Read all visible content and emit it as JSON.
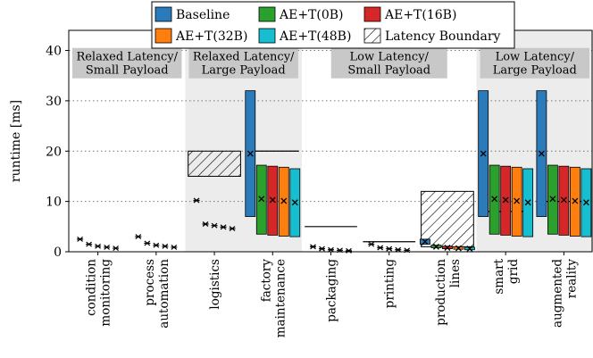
{
  "chart_data": {
    "type": "bar",
    "ylabel": "runtime [ms]",
    "ylim": [
      0,
      44
    ],
    "yticks": [
      0,
      10,
      20,
      30,
      40
    ],
    "grid": "horizontal-dotted",
    "legend_placement": "top",
    "legend": [
      {
        "key": "baseline",
        "label": "Baseline",
        "color": "#2b7bba",
        "pattern": "solid"
      },
      {
        "key": "ae0",
        "label": "AE+T(0B)",
        "color": "#2ca02c",
        "pattern": "solid"
      },
      {
        "key": "ae16",
        "label": "AE+T(16B)",
        "color": "#d62728",
        "pattern": "solid"
      },
      {
        "key": "ae32",
        "label": "AE+T(32B)",
        "color": "#ff7f0e",
        "pattern": "solid"
      },
      {
        "key": "ae48",
        "label": "AE+T(48B)",
        "color": "#17becf",
        "pattern": "solid"
      },
      {
        "key": "boundary",
        "label": "Latency Boundary",
        "color": "#000000",
        "pattern": "hatch"
      }
    ],
    "regions": [
      {
        "label": [
          "Relaxed Latency/",
          "Small Payload"
        ],
        "categories": [
          0,
          1
        ],
        "shaded": false
      },
      {
        "label": [
          "Relaxed Latency/",
          "Large Payload"
        ],
        "categories": [
          2,
          3
        ],
        "shaded": true
      },
      {
        "label": [
          "Low Latency/",
          "Small Payload"
        ],
        "categories": [
          4,
          5,
          6
        ],
        "shaded": false
      },
      {
        "label": [
          "Low Latency/",
          "Large Payload"
        ],
        "categories": [
          7,
          8
        ],
        "shaded": true
      }
    ],
    "categories": [
      {
        "label": [
          "condition",
          "monitoring"
        ],
        "boundary": null,
        "markers": [
          2.5,
          1.5,
          1.1,
          0.9,
          0.7
        ],
        "boxes": null
      },
      {
        "label": [
          "process",
          "automation"
        ],
        "boundary": null,
        "markers": [
          3.0,
          1.7,
          1.3,
          1.1,
          0.9
        ],
        "boxes": null
      },
      {
        "label": [
          "logistics"
        ],
        "boundary": [
          15,
          20
        ],
        "markers": [
          10.2,
          5.5,
          5.2,
          4.9,
          4.6
        ],
        "boxes": null
      },
      {
        "label": [
          "factory",
          "maintenance"
        ],
        "boundary": [
          20,
          20
        ],
        "boxes": [
          {
            "low": 7.0,
            "high": 32.0,
            "mean": 19.5
          },
          {
            "low": 3.5,
            "high": 17.2,
            "mean": 10.5
          },
          {
            "low": 3.3,
            "high": 17.0,
            "mean": 10.3
          },
          {
            "low": 3.1,
            "high": 16.8,
            "mean": 10.1
          },
          {
            "low": 3.0,
            "high": 16.5,
            "mean": 9.8
          }
        ],
        "markers": null
      },
      {
        "label": [
          "packaging"
        ],
        "boundary": [
          5,
          5
        ],
        "markers": [
          1.0,
          0.6,
          0.4,
          0.3,
          0.2
        ],
        "boxes": null
      },
      {
        "label": [
          "printing"
        ],
        "boundary": [
          2,
          2
        ],
        "markers": [
          1.5,
          0.8,
          0.6,
          0.4,
          0.3
        ],
        "boxes": null
      },
      {
        "label": [
          "production",
          "lines"
        ],
        "boundary": [
          1,
          12
        ],
        "boxes": [
          {
            "low": 1.5,
            "high": 2.5,
            "mean": 2.0
          },
          {
            "low": 0.8,
            "high": 1.3,
            "mean": 1.0
          },
          {
            "low": 0.6,
            "high": 1.1,
            "mean": 0.8
          },
          {
            "low": 0.5,
            "high": 1.0,
            "mean": 0.7
          },
          {
            "low": 0.4,
            "high": 0.9,
            "mean": 0.6
          }
        ],
        "markers": null
      },
      {
        "label": [
          "smart",
          "grid"
        ],
        "boundary": [
          8,
          8
        ],
        "boxes": [
          {
            "low": 7.0,
            "high": 32.0,
            "mean": 19.5
          },
          {
            "low": 3.5,
            "high": 17.2,
            "mean": 10.5
          },
          {
            "low": 3.3,
            "high": 17.0,
            "mean": 10.3
          },
          {
            "low": 3.1,
            "high": 16.8,
            "mean": 10.1
          },
          {
            "low": 3.0,
            "high": 16.5,
            "mean": 9.8
          }
        ],
        "markers": null
      },
      {
        "label": [
          "augmented",
          "reality"
        ],
        "boundary": [
          10,
          10
        ],
        "boxes": [
          {
            "low": 7.0,
            "high": 32.0,
            "mean": 19.5
          },
          {
            "low": 3.5,
            "high": 17.2,
            "mean": 10.5
          },
          {
            "low": 3.3,
            "high": 17.0,
            "mean": 10.3
          },
          {
            "low": 3.1,
            "high": 16.8,
            "mean": 10.1
          },
          {
            "low": 3.0,
            "high": 16.5,
            "mean": 9.8
          }
        ],
        "markers": null
      }
    ]
  }
}
